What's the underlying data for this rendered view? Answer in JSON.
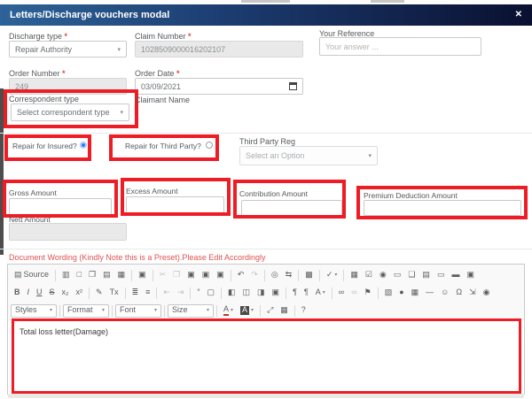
{
  "modal": {
    "title": "Letters/Discharge vouchers modal",
    "close_glyph": "✕"
  },
  "colors": {
    "annotation_red": "#ee1c25",
    "header_blue_left": "#2d6398",
    "header_navy_right": "#0a1030",
    "note_red": "#e05252",
    "radio_selected": "#2979ff",
    "disabled_bg": "#e9e9e9"
  },
  "fields": {
    "discharge_type": {
      "label": "Discharge type",
      "required": "*",
      "value": "Repair Authority"
    },
    "claim_number": {
      "label": "Claim Number",
      "required": "*",
      "value": "1028509000016202107"
    },
    "your_reference": {
      "label": "Your Reference",
      "placeholder": "Your answer ..."
    },
    "order_number": {
      "label": "Order Number",
      "required": "*",
      "value": "249"
    },
    "order_date": {
      "label": "Order Date",
      "required": "*",
      "value": "03/09/2021"
    },
    "correspondent_type": {
      "label": "Correspondent type",
      "value": "Select correspondent type"
    },
    "claimant_name": {
      "label": "Claimant Name"
    },
    "repair_for_insured": {
      "label": "Repair for Insured?"
    },
    "repair_for_third_party": {
      "label": "Repair for Third Party?"
    },
    "third_party_reg": {
      "label": "Third Party Reg",
      "placeholder": "Select an Option"
    },
    "gross_amount": {
      "label": "Gross Amount"
    },
    "excess_amount": {
      "label": "Excess Amount"
    },
    "contribution_amount": {
      "label": "Contribution Amount"
    },
    "premium_deduction_amount": {
      "label": "Premium Deduction Amount"
    },
    "nett_amount": {
      "label": "Nett Amount"
    }
  },
  "note": "Document Wording (Kindly Note this is a Preset).Please Edit Accordingly",
  "editor": {
    "content": "Total loss letter(Damage)",
    "toolbar_row1": [
      {
        "n": "source",
        "g": "▤",
        "t": "Source"
      },
      {
        "sep": true
      },
      {
        "n": "save",
        "g": "▥"
      },
      {
        "n": "new-page",
        "g": "□"
      },
      {
        "n": "preview",
        "g": "❐"
      },
      {
        "n": "print",
        "g": "▤"
      },
      {
        "n": "templates",
        "g": "▦"
      },
      {
        "sep": true
      },
      {
        "n": "document-properties",
        "g": "▣"
      },
      {
        "sep": true
      },
      {
        "n": "cut",
        "g": "✂",
        "dis": true
      },
      {
        "n": "copy",
        "g": "❐",
        "dis": true
      },
      {
        "n": "paste",
        "g": "▣"
      },
      {
        "n": "paste-text",
        "g": "▣"
      },
      {
        "n": "paste-word",
        "g": "▣"
      },
      {
        "sep": true
      },
      {
        "n": "undo",
        "g": "↶"
      },
      {
        "n": "redo",
        "g": "↷",
        "dis": true
      },
      {
        "sep": true
      },
      {
        "n": "find",
        "g": "◎"
      },
      {
        "n": "replace",
        "g": "⇆"
      },
      {
        "sep": true
      },
      {
        "n": "select-all",
        "g": "▩"
      },
      {
        "sep": true
      },
      {
        "n": "spell-check",
        "g": "✓",
        "caret": true
      },
      {
        "sep": true
      },
      {
        "n": "form",
        "g": "▦"
      },
      {
        "n": "checkbox",
        "g": "☑"
      },
      {
        "n": "radio-field",
        "g": "◉"
      },
      {
        "n": "text-field",
        "g": "▭"
      },
      {
        "n": "textarea",
        "g": "❏"
      },
      {
        "n": "select-field",
        "g": "▤"
      },
      {
        "n": "button-field",
        "g": "▭"
      },
      {
        "n": "image-button",
        "g": "▬"
      },
      {
        "n": "hidden-field",
        "g": "▣"
      }
    ],
    "toolbar_row2": [
      {
        "n": "bold",
        "g": "B",
        "cls": "fw"
      },
      {
        "n": "italic",
        "g": "I",
        "cls": "it"
      },
      {
        "n": "underline",
        "g": "U",
        "cls": "ul"
      },
      {
        "n": "strikethrough",
        "g": "S",
        "cls": "st"
      },
      {
        "n": "subscript",
        "g": "x₂"
      },
      {
        "n": "superscript",
        "g": "x²"
      },
      {
        "sep": true
      },
      {
        "n": "copy-formatting",
        "g": "✎"
      },
      {
        "n": "remove-format",
        "g": "Tx"
      },
      {
        "sep": true
      },
      {
        "n": "numbered-list",
        "g": "≣"
      },
      {
        "n": "bulleted-list",
        "g": "≡"
      },
      {
        "sep": true
      },
      {
        "n": "outdent",
        "g": "⇤",
        "dis": true
      },
      {
        "n": "indent",
        "g": "⇥",
        "dis": true
      },
      {
        "sep": true
      },
      {
        "n": "blockquote",
        "g": "“"
      },
      {
        "n": "div-container",
        "g": "▢"
      },
      {
        "sep": true
      },
      {
        "n": "align-left",
        "g": "◧"
      },
      {
        "n": "align-center",
        "g": "◫"
      },
      {
        "n": "align-right",
        "g": "◨"
      },
      {
        "n": "justify",
        "g": "▣"
      },
      {
        "sep": true
      },
      {
        "n": "text-direction-ltr",
        "g": "¶"
      },
      {
        "n": "text-direction-rtl",
        "g": "¶"
      },
      {
        "n": "language",
        "g": "A",
        "caret": true
      },
      {
        "sep": true
      },
      {
        "n": "link",
        "g": "∞"
      },
      {
        "n": "unlink",
        "g": "∞",
        "dis": true
      },
      {
        "n": "anchor",
        "g": "⚑"
      },
      {
        "sep": true
      },
      {
        "n": "image",
        "g": "▧"
      },
      {
        "n": "flash",
        "g": "●"
      },
      {
        "n": "table",
        "g": "▦"
      },
      {
        "n": "horizontal-line",
        "g": "―"
      },
      {
        "n": "smiley",
        "g": "☺"
      },
      {
        "n": "special-character",
        "g": "Ω"
      },
      {
        "n": "page-break",
        "g": "⇲"
      },
      {
        "n": "iframe",
        "g": "◉"
      }
    ],
    "toolbar_row3": [
      {
        "n": "styles",
        "t": "Styles",
        "caret": true,
        "cls": "drop"
      },
      {
        "sep": true
      },
      {
        "n": "format",
        "t": "Format",
        "caret": true,
        "cls": "drop"
      },
      {
        "sep": true
      },
      {
        "n": "font",
        "t": "Font",
        "caret": true,
        "cls": "drop"
      },
      {
        "sep": true
      },
      {
        "n": "size",
        "t": "Size",
        "caret": true,
        "cls": "drop"
      },
      {
        "sep": true
      },
      {
        "n": "text-color",
        "g": "A",
        "caret": true,
        "cls": "tc-red"
      },
      {
        "n": "background-color",
        "g": "A",
        "caret": true,
        "cls": "tc-bg"
      },
      {
        "sep": true
      },
      {
        "n": "maximize",
        "g": "⤢"
      },
      {
        "n": "show-blocks",
        "g": "▦"
      },
      {
        "sep": true
      },
      {
        "n": "about",
        "g": "?"
      }
    ]
  }
}
